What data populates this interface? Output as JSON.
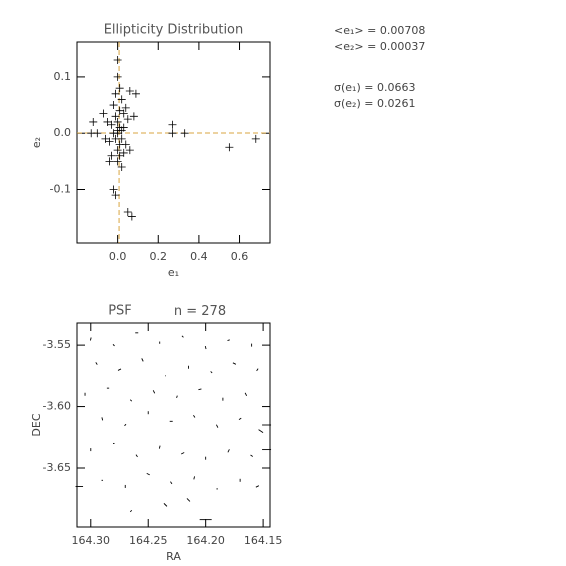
{
  "chart_data": [
    {
      "type": "scatter",
      "title": "Ellipticity Distribution",
      "x_label": "e₁",
      "y_label": "e₂",
      "xlim": [
        -0.2,
        0.75
      ],
      "ylim": [
        -0.195,
        0.162
      ],
      "xticks": [
        {
          "value": 0,
          "label": "0.0"
        },
        0.2,
        0.4,
        0.6
      ],
      "yticks": [
        0.1,
        {
          "value": 0,
          "label": "0.0"
        },
        -0.1
      ],
      "color": "#000000",
      "line_color": "#d9a441",
      "annotations": [
        {
          "label": "<e₁> =",
          "value": 0.00708
        },
        {
          "label": "<e₂> =",
          "value": 0.00037
        },
        {
          "label": "σ(e₁) =",
          "value": 0.0663
        },
        {
          "label": "σ(e₂) =",
          "value": 0.0261
        }
      ],
      "x": [
        0.0,
        0.01,
        -0.01,
        0.02,
        0.0,
        -0.02,
        0.01,
        0.03,
        -0.03,
        0.0,
        0.02,
        -0.01,
        0.01,
        0.04,
        -0.04,
        0.0,
        0.01,
        -0.02,
        0.02,
        0.03,
        -0.05,
        0.05,
        0.0,
        -0.01,
        0.06,
        -0.06,
        0.01,
        0.0,
        0.09,
        0.06,
        0.27,
        0.27,
        0.33,
        0.55,
        0.68,
        -0.02,
        -0.01,
        0.05,
        0.07,
        -0.1,
        -0.13,
        -0.12,
        -0.04,
        0.04,
        -0.03,
        0.08,
        0.02,
        -0.07,
        0.0,
        0.03
      ],
      "y": [
        0.0,
        0.01,
        -0.01,
        0.005,
        0.02,
        0.0,
        -0.02,
        0.01,
        0.015,
        -0.03,
        -0.01,
        0.03,
        0.04,
        -0.02,
        -0.015,
        0.13,
        -0.04,
        0.05,
        0.06,
        0.035,
        0.02,
        0.025,
        -0.05,
        0.07,
        -0.03,
        -0.01,
        0.08,
        0.005,
        0.07,
        0.075,
        0.015,
        0.0,
        0.0,
        -0.025,
        -0.01,
        -0.1,
        -0.11,
        -0.14,
        -0.148,
        0.0,
        0.0,
        0.02,
        -0.05,
        0.045,
        -0.04,
        0.03,
        -0.06,
        0.035,
        0.1,
        -0.035
      ]
    },
    {
      "type": "vector",
      "title": "PSF",
      "count_label": "n =",
      "count": 278,
      "x_label": "RA",
      "y_label": "DEC",
      "xlim": [
        164.312,
        164.144
      ],
      "ylim": [
        -3.698,
        -3.532
      ],
      "xticks": [
        {
          "value": 164.3,
          "label": "164.30"
        },
        164.25,
        {
          "value": 164.2,
          "label": "164.20"
        },
        164.15
      ],
      "yticks": [
        -3.55,
        {
          "value": -3.6,
          "label": "-3.60"
        },
        -3.65
      ],
      "color": "#000000",
      "x": [
        164.3,
        164.28,
        164.26,
        164.24,
        164.22,
        164.2,
        164.18,
        164.16,
        164.295,
        164.275,
        164.255,
        164.235,
        164.215,
        164.195,
        164.175,
        164.155,
        164.305,
        164.285,
        164.265,
        164.245,
        164.225,
        164.205,
        164.185,
        164.165,
        164.29,
        164.27,
        164.25,
        164.23,
        164.21,
        164.19,
        164.17,
        164.152,
        164.3,
        164.28,
        164.26,
        164.24,
        164.22,
        164.2,
        164.18,
        164.16,
        164.29,
        164.27,
        164.25,
        164.23,
        164.21,
        164.19,
        164.17,
        164.155,
        164.147,
        164.147,
        164.31,
        164.2,
        164.235,
        164.265,
        164.215
      ],
      "y": [
        -3.545,
        -3.55,
        -3.54,
        -3.548,
        -3.543,
        -3.552,
        -3.546,
        -3.55,
        -3.565,
        -3.57,
        -3.562,
        -3.575,
        -3.568,
        -3.572,
        -3.565,
        -3.57,
        -3.59,
        -3.585,
        -3.595,
        -3.588,
        -3.592,
        -3.586,
        -3.594,
        -3.59,
        -3.61,
        -3.615,
        -3.605,
        -3.612,
        -3.608,
        -3.616,
        -3.61,
        -3.62,
        -3.635,
        -3.63,
        -3.64,
        -3.633,
        -3.638,
        -3.642,
        -3.636,
        -3.64,
        -3.66,
        -3.665,
        -3.655,
        -3.662,
        -3.658,
        -3.667,
        -3.66,
        -3.665,
        -3.615,
        -3.635,
        -3.665,
        -3.692,
        -3.68,
        -3.685,
        -3.676
      ],
      "e1": [
        0.005,
        -0.01,
        0.02,
        0.0,
        0.01,
        -0.005,
        0.015,
        0.0,
        0.01,
        0.02,
        -0.01,
        0.005,
        0.0,
        0.01,
        -0.02,
        0.01,
        0.0,
        0.015,
        0.01,
        -0.01,
        0.005,
        0.02,
        0.0,
        0.01,
        -0.005,
        0.01,
        0.0,
        0.02,
        0.01,
        -0.01,
        0.015,
        0.03,
        0.0,
        0.01,
        -0.01,
        0.005,
        0.02,
        0.0,
        0.01,
        -0.015,
        0.01,
        0.0,
        0.02,
        -0.01,
        0.005,
        0.01,
        0.0,
        0.02,
        0.06,
        0.06,
        0.05,
        0.08,
        0.02,
        0.01,
        -0.02
      ],
      "e2": [
        0.02,
        0.01,
        0.0,
        0.015,
        -0.01,
        0.02,
        0.005,
        0.02,
        -0.015,
        0.01,
        0.02,
        0.0,
        0.02,
        -0.01,
        0.01,
        0.015,
        0.02,
        0.0,
        -0.01,
        0.02,
        0.015,
        0.005,
        0.02,
        -0.02,
        0.02,
        0.01,
        0.02,
        0.0,
        -0.015,
        0.02,
        0.01,
        -0.02,
        0.02,
        0.0,
        0.015,
        0.02,
        0.01,
        -0.02,
        0.02,
        0.01,
        0.0,
        0.02,
        -0.01,
        0.015,
        0.02,
        0.0,
        0.02,
        0.01,
        0.0,
        0.0,
        0.0,
        0.0,
        -0.02,
        0.01,
        0.02
      ]
    }
  ]
}
